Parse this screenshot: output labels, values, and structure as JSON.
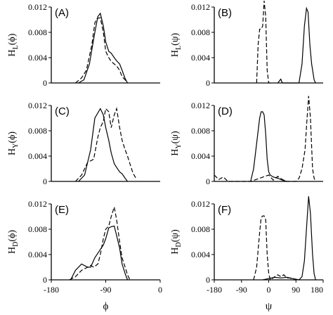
{
  "chart_data": [
    {
      "id": "A",
      "type": "line",
      "label": "(A)",
      "ylabel": "H_L(ϕ)",
      "xlim": [
        -180,
        0
      ],
      "ylim": [
        0,
        0.012
      ],
      "show_xticks": false,
      "yticks": [
        "0",
        "0.004",
        "0.008",
        "0.012"
      ],
      "series": [
        {
          "style": "solid",
          "x": [
            -135,
            -126,
            -117,
            -108,
            -103,
            -99,
            -94,
            -90,
            -85,
            -81,
            -76,
            -72,
            -67,
            -63,
            -58,
            -54
          ],
          "y": [
            0,
            0.0005,
            0.003,
            0.008,
            0.0105,
            0.011,
            0.009,
            0.0065,
            0.005,
            0.0047,
            0.004,
            0.0035,
            0.003,
            0.002,
            0.0007,
            0
          ]
        },
        {
          "style": "dashed",
          "x": [
            -140,
            -130,
            -122,
            -113,
            -108,
            -104,
            -99,
            -94,
            -90,
            -85,
            -81,
            -76,
            -72,
            -67,
            -63,
            -58,
            -54
          ],
          "y": [
            0,
            0.0008,
            0.002,
            0.006,
            0.0095,
            0.0102,
            0.0103,
            0.008,
            0.005,
            0.004,
            0.0034,
            0.003,
            0.0027,
            0.002,
            0.001,
            0.0005,
            0
          ]
        }
      ]
    },
    {
      "id": "B",
      "type": "line",
      "label": "(B)",
      "ylabel": "H_L(ψ)",
      "xlim": [
        -180,
        180
      ],
      "ylim": [
        0,
        0.012
      ],
      "show_xticks": false,
      "yticks": [
        "0",
        "0.004",
        "0.008",
        "0.012"
      ],
      "series": [
        {
          "style": "dashed",
          "x": [
            -40,
            -35,
            -30,
            -25,
            -20,
            -15,
            -10,
            -5,
            0,
            5
          ],
          "y": [
            0,
            0.006,
            0.0085,
            0.0085,
            0.009,
            0.013,
            0.0105,
            0.002,
            0,
            0
          ]
        },
        {
          "style": "solid",
          "x": [
            30,
            40,
            45,
            50,
            100,
            110,
            118,
            125,
            130,
            136,
            142,
            150,
            155
          ],
          "y": [
            0,
            0.0006,
            0,
            0,
            0,
            0.003,
            0.009,
            0.0118,
            0.0112,
            0.006,
            0.003,
            0.0005,
            0
          ]
        }
      ]
    },
    {
      "id": "C",
      "type": "line",
      "label": "(C)",
      "ylabel": "H_Y(ϕ)",
      "xlim": [
        -180,
        0
      ],
      "ylim": [
        0,
        0.012
      ],
      "show_xticks": false,
      "yticks": [
        "0",
        "0.004",
        "0.008",
        "0.012"
      ],
      "series": [
        {
          "style": "solid",
          "x": [
            -135,
            -125,
            -115,
            -108,
            -99,
            -94,
            -90,
            -85,
            -81,
            -76,
            -72,
            -67,
            -63,
            -58,
            -54
          ],
          "y": [
            0,
            0.001,
            0.005,
            0.01,
            0.0115,
            0.0105,
            0.0085,
            0.0065,
            0.0045,
            0.0028,
            0.0022,
            0.0015,
            0.0012,
            0.0005,
            0
          ]
        },
        {
          "style": "dashed",
          "x": [
            -140,
            -130,
            -120,
            -110,
            -103,
            -99,
            -94,
            -90,
            -85,
            -81,
            -76,
            -72,
            -67,
            -63,
            -58,
            -54,
            -49,
            -45,
            -40
          ],
          "y": [
            0,
            0.001,
            0.003,
            0.0035,
            0.007,
            0.0085,
            0.0095,
            0.0115,
            0.011,
            0.0085,
            0.0105,
            0.0115,
            0.0085,
            0.0065,
            0.005,
            0.004,
            0.0025,
            0.0013,
            0.0005
          ]
        }
      ]
    },
    {
      "id": "D",
      "type": "line",
      "label": "(D)",
      "ylabel": "H_Y(ψ)",
      "xlim": [
        -180,
        180
      ],
      "ylim": [
        0,
        0.012
      ],
      "show_xticks": false,
      "yticks": [
        "0",
        "0.004",
        "0.008",
        "0.012"
      ],
      "series": [
        {
          "style": "solid",
          "x": [
            -60,
            -50,
            -40,
            -30,
            -25,
            -20,
            -15,
            -10,
            -5,
            0,
            5,
            15,
            30,
            45,
            60
          ],
          "y": [
            0,
            0.002,
            0.006,
            0.01,
            0.011,
            0.011,
            0.0105,
            0.0075,
            0.0035,
            0.0015,
            0.001,
            0.0007,
            0.0005,
            0.0002,
            0
          ]
        },
        {
          "style": "dashed",
          "x": [
            -180,
            -165,
            -150,
            -135,
            -60,
            -30,
            0,
            15,
            30,
            45,
            60,
            75,
            90,
            100,
            110,
            120,
            126,
            132,
            138,
            145,
            150,
            155
          ],
          "y": [
            0.001,
            0.0003,
            0.0007,
            0,
            0,
            0.0005,
            0.001,
            0.0002,
            0.0008,
            0.0003,
            0,
            0,
            0,
            0.0005,
            0.002,
            0.005,
            0.0095,
            0.0135,
            0.01,
            0.002,
            0.0005,
            0
          ]
        }
      ]
    },
    {
      "id": "E",
      "type": "line",
      "label": "(E)",
      "ylabel": "H_D(ϕ)",
      "xlim": [
        -180,
        0
      ],
      "ylim": [
        0,
        0.012
      ],
      "show_xticks": true,
      "xticks": [
        -180,
        -90,
        0
      ],
      "xlabel": "ϕ",
      "yticks": [
        "0",
        "0.004",
        "0.008",
        "0.012"
      ],
      "series": [
        {
          "style": "solid",
          "x": [
            -148,
            -140,
            -130,
            -120,
            -115,
            -108,
            -99,
            -94,
            -90,
            -85,
            -81,
            -76,
            -72,
            -67,
            -63,
            -58,
            -54
          ],
          "y": [
            0,
            0.0015,
            0.0025,
            0.002,
            0.002,
            0.0035,
            0.0048,
            0.0055,
            0.0065,
            0.0082,
            0.0084,
            0.0085,
            0.007,
            0.005,
            0.0025,
            0.001,
            0
          ]
        },
        {
          "style": "dashed",
          "x": [
            -150,
            -140,
            -130,
            -120,
            -115,
            -110,
            -103,
            -99,
            -94,
            -90,
            -85,
            -81,
            -76,
            -72,
            -67,
            -63,
            -58,
            -54,
            -50
          ],
          "y": [
            0,
            0.0005,
            0.0015,
            0.002,
            0.0023,
            0.002,
            0.0025,
            0.004,
            0.0065,
            0.008,
            0.0085,
            0.01,
            0.0115,
            0.0095,
            0.006,
            0.0035,
            0.002,
            0.0008,
            0
          ]
        }
      ]
    },
    {
      "id": "F",
      "type": "line",
      "label": "(F)",
      "ylabel": "H_D(ψ)",
      "xlim": [
        -180,
        180
      ],
      "ylim": [
        0,
        0.012
      ],
      "show_xticks": true,
      "xticks": [
        -180,
        -90,
        0,
        90,
        180
      ],
      "xlabel": "ψ",
      "yticks": [
        "0",
        "0.004",
        "0.008",
        "0.012"
      ],
      "series": [
        {
          "style": "dashed",
          "x": [
            -50,
            -40,
            -30,
            -25,
            -20,
            -15,
            -10,
            -5,
            0,
            5,
            20,
            30,
            40,
            50,
            60,
            70,
            80,
            90
          ],
          "y": [
            0,
            0.002,
            0.0075,
            0.0098,
            0.0101,
            0.0101,
            0.0095,
            0.004,
            0.001,
            0,
            0.0005,
            0.0008,
            0.0005,
            0.0008,
            0.0003,
            0.0003,
            0,
            0
          ]
        },
        {
          "style": "solid",
          "x": [
            -20,
            0,
            20,
            40,
            60,
            80,
            100,
            110,
            118,
            126,
            132,
            138,
            145,
            150,
            155
          ],
          "y": [
            0,
            0.0002,
            0.0004,
            0.0003,
            0.0004,
            0.0002,
            0,
            0.0005,
            0.003,
            0.009,
            0.0132,
            0.0105,
            0.004,
            0.001,
            0
          ]
        }
      ]
    }
  ]
}
